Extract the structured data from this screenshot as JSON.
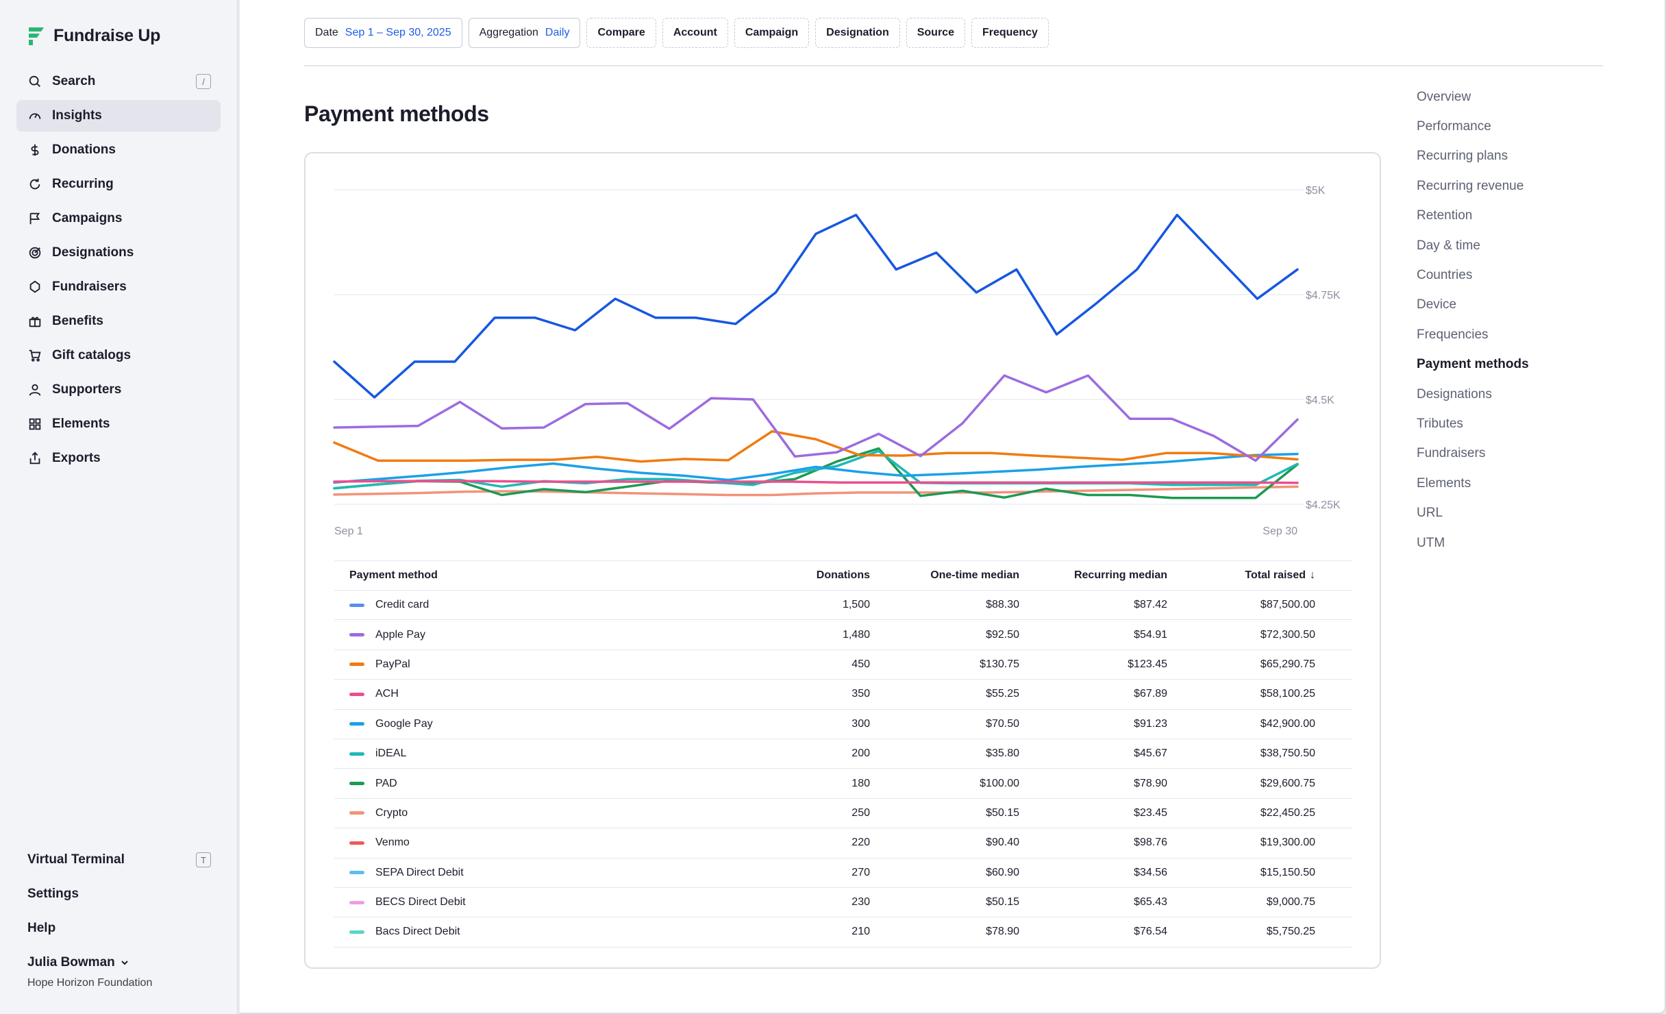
{
  "brand": {
    "name": "Fundraise Up",
    "color": "#2bb673"
  },
  "sidebar": {
    "items": [
      {
        "label": "Search",
        "icon": "search-icon",
        "shortcut": "/"
      },
      {
        "label": "Insights",
        "icon": "gauge-icon",
        "active": true
      },
      {
        "label": "Donations",
        "icon": "dollar-icon"
      },
      {
        "label": "Recurring",
        "icon": "refresh-icon"
      },
      {
        "label": "Campaigns",
        "icon": "flag-icon"
      },
      {
        "label": "Designations",
        "icon": "target-icon"
      },
      {
        "label": "Fundraisers",
        "icon": "heart-icon"
      },
      {
        "label": "Benefits",
        "icon": "gift-icon"
      },
      {
        "label": "Gift catalogs",
        "icon": "cart-icon"
      },
      {
        "label": "Supporters",
        "icon": "person-icon"
      },
      {
        "label": "Elements",
        "icon": "grid-icon"
      },
      {
        "label": "Exports",
        "icon": "export-icon"
      }
    ],
    "bottom": [
      {
        "label": "Virtual Terminal",
        "shortcut": "T"
      },
      {
        "label": "Settings"
      },
      {
        "label": "Help"
      }
    ],
    "user": {
      "name": "Julia Bowman",
      "org": "Hope Horizon Foundation"
    }
  },
  "filters": [
    {
      "label": "Date",
      "value": "Sep 1 – Sep 30, 2025",
      "dashed": false
    },
    {
      "label": "Aggregation",
      "value": "Daily",
      "dashed": false
    },
    {
      "label": "Compare",
      "dashed": true
    },
    {
      "label": "Account",
      "dashed": true
    },
    {
      "label": "Campaign",
      "dashed": true
    },
    {
      "label": "Designation",
      "dashed": true
    },
    {
      "label": "Source",
      "dashed": true
    },
    {
      "label": "Frequency",
      "dashed": true
    }
  ],
  "page": {
    "title": "Payment methods"
  },
  "chart_data": {
    "type": "line",
    "x_start_label": "Sep 1",
    "x_end_label": "Sep 30",
    "y_ticks": [
      "$5K",
      "$4.75K",
      "$4.5K",
      "$4.25K"
    ],
    "y_tick_values": [
      5000,
      4750,
      4500,
      4250
    ],
    "ylim": [
      4250,
      5000
    ],
    "grid": true,
    "series": [
      {
        "name": "Credit card",
        "color": "#1657e0",
        "values": [
          4590,
          4505,
          4590,
          4590,
          4695,
          4695,
          4665,
          4740,
          4695,
          4695,
          4680,
          4755,
          4895,
          4940,
          4810,
          4850,
          4755,
          4810,
          4655,
          4730,
          4810,
          4940,
          4840,
          4740,
          4810
        ]
      },
      {
        "name": "Apple Pay",
        "color": "#9d6be0",
        "values": [
          4433,
          4435,
          4437,
          4494,
          4431,
          4433,
          4489,
          4491,
          4430,
          4503,
          4500,
          4364,
          4374,
          4418,
          4365,
          4443,
          4557,
          4517,
          4557,
          4454,
          4454,
          4413,
          4354,
          4452
        ]
      },
      {
        "name": "PayPal",
        "color": "#f07b11",
        "values": [
          4397,
          4354,
          4354,
          4354,
          4356,
          4356,
          4363,
          4352,
          4358,
          4355,
          4424,
          4405,
          4367,
          4366,
          4372,
          4372,
          4366,
          4361,
          4356,
          4372,
          4372,
          4365,
          4357
        ]
      },
      {
        "name": "ACH",
        "color": "#ea4f8e",
        "values": [
          4304,
          4305,
          4305,
          4305,
          4304,
          4304,
          4304,
          4304,
          4304,
          4304,
          4302,
          4302,
          4302,
          4302,
          4302,
          4302,
          4302,
          4302,
          4302,
          4301
        ]
      },
      {
        "name": "Google Pay",
        "color": "#1ca0e8",
        "values": [
          4302,
          4310,
          4318,
          4327,
          4338,
          4347,
          4335,
          4325,
          4318,
          4308,
          4322,
          4339,
          4327,
          4318,
          4322,
          4327,
          4332,
          4339,
          4345,
          4351,
          4359,
          4367,
          4370
        ]
      },
      {
        "name": "iDEAL",
        "color": "#1fb9b5",
        "values": [
          4288,
          4297,
          4306,
          4308,
          4292,
          4305,
          4300,
          4310,
          4310,
          4303,
          4296,
          4325,
          4341,
          4377,
          4301,
          4300,
          4300,
          4300,
          4300,
          4300,
          4296,
          4296,
          4296,
          4346
        ]
      },
      {
        "name": "PAD",
        "color": "#1c9a53",
        "values": [
          4288,
          4297,
          4305,
          4304,
          4272,
          4286,
          4279,
          4292,
          4306,
          4302,
          4300,
          4310,
          4352,
          4383,
          4270,
          4282,
          4266,
          4287,
          4272,
          4272,
          4265,
          4265,
          4265,
          4345
        ]
      },
      {
        "name": "Crypto",
        "color": "#f2927a",
        "values": [
          4273,
          4275,
          4277,
          4280,
          4281,
          4280,
          4278,
          4276,
          4274,
          4272,
          4272,
          4276,
          4278,
          4278,
          4278,
          4278,
          4280,
          4282,
          4284,
          4286,
          4288,
          4290,
          4292
        ]
      }
    ]
  },
  "table": {
    "headers": [
      "Payment method",
      "Donations",
      "One-time median",
      "Recurring median",
      "Total raised"
    ],
    "sort_indicator": "↓",
    "rows": [
      {
        "name": "Credit card",
        "color": "#5b8df0",
        "donations": "1,500",
        "one_time": "$88.30",
        "recurring": "$87.42",
        "total": "$87,500.00"
      },
      {
        "name": "Apple Pay",
        "color": "#9d6be0",
        "donations": "1,480",
        "one_time": "$92.50",
        "recurring": "$54.91",
        "total": "$72,300.50"
      },
      {
        "name": "PayPal",
        "color": "#f07b11",
        "donations": "450",
        "one_time": "$130.75",
        "recurring": "$123.45",
        "total": "$65,290.75"
      },
      {
        "name": "ACH",
        "color": "#ea4f8e",
        "donations": "350",
        "one_time": "$55.25",
        "recurring": "$67.89",
        "total": "$58,100.25"
      },
      {
        "name": "Google Pay",
        "color": "#1ca0e8",
        "donations": "300",
        "one_time": "$70.50",
        "recurring": "$91.23",
        "total": "$42,900.00"
      },
      {
        "name": "iDEAL",
        "color": "#1fb9b5",
        "donations": "200",
        "one_time": "$35.80",
        "recurring": "$45.67",
        "total": "$38,750.50"
      },
      {
        "name": "PAD",
        "color": "#1c9a53",
        "donations": "180",
        "one_time": "$100.00",
        "recurring": "$78.90",
        "total": "$29,600.75"
      },
      {
        "name": "Crypto",
        "color": "#f2927a",
        "donations": "250",
        "one_time": "$50.15",
        "recurring": "$23.45",
        "total": "$22,450.25"
      },
      {
        "name": "Venmo",
        "color": "#ef5a5a",
        "donations": "220",
        "one_time": "$90.40",
        "recurring": "$98.76",
        "total": "$19,300.00"
      },
      {
        "name": "SEPA Direct Debit",
        "color": "#5bbcf2",
        "donations": "270",
        "one_time": "$60.90",
        "recurring": "$34.56",
        "total": "$15,150.50"
      },
      {
        "name": "BECS Direct Debit",
        "color": "#f29ae6",
        "donations": "230",
        "one_time": "$50.15",
        "recurring": "$65.43",
        "total": "$9,000.75"
      },
      {
        "name": "Bacs Direct Debit",
        "color": "#5ed4c6",
        "donations": "210",
        "one_time": "$78.90",
        "recurring": "$76.54",
        "total": "$5,750.25"
      }
    ]
  },
  "right_nav": {
    "items": [
      {
        "label": "Overview"
      },
      {
        "label": "Performance"
      },
      {
        "label": "Recurring plans"
      },
      {
        "label": "Recurring revenue"
      },
      {
        "label": "Retention"
      },
      {
        "label": "Day & time"
      },
      {
        "label": "Countries"
      },
      {
        "label": "Device"
      },
      {
        "label": "Frequencies"
      },
      {
        "label": "Payment methods",
        "active": true
      },
      {
        "label": "Designations"
      },
      {
        "label": "Tributes"
      },
      {
        "label": "Fundraisers"
      },
      {
        "label": "Elements"
      },
      {
        "label": "URL"
      },
      {
        "label": "UTM"
      }
    ]
  }
}
